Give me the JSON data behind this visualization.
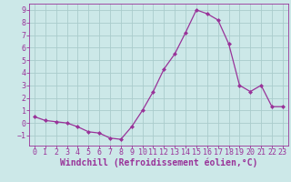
{
  "x": [
    0,
    1,
    2,
    3,
    4,
    5,
    6,
    7,
    8,
    9,
    10,
    11,
    12,
    13,
    14,
    15,
    16,
    17,
    18,
    19,
    20,
    21,
    22,
    23
  ],
  "y": [
    0.5,
    0.2,
    0.1,
    0.0,
    -0.3,
    -0.7,
    -0.8,
    -1.2,
    -1.3,
    -0.3,
    1.0,
    2.5,
    4.3,
    5.5,
    7.2,
    9.0,
    8.7,
    8.2,
    6.3,
    3.0,
    2.5,
    3.0,
    1.3,
    1.3
  ],
  "line_color": "#993399",
  "marker": "D",
  "marker_size": 2,
  "bg_color": "#cce8e8",
  "grid_color": "#aacccc",
  "xlabel": "Windchill (Refroidissement éolien,°C)",
  "xlabel_color": "#993399",
  "tick_color": "#993399",
  "ylim": [
    -1.8,
    9.5
  ],
  "xlim": [
    -0.5,
    23.5
  ],
  "yticks": [
    -1,
    0,
    1,
    2,
    3,
    4,
    5,
    6,
    7,
    8,
    9
  ],
  "xticks": [
    0,
    1,
    2,
    3,
    4,
    5,
    6,
    7,
    8,
    9,
    10,
    11,
    12,
    13,
    14,
    15,
    16,
    17,
    18,
    19,
    20,
    21,
    22,
    23
  ],
  "font_size_ticks": 6,
  "font_size_xlabel": 7
}
